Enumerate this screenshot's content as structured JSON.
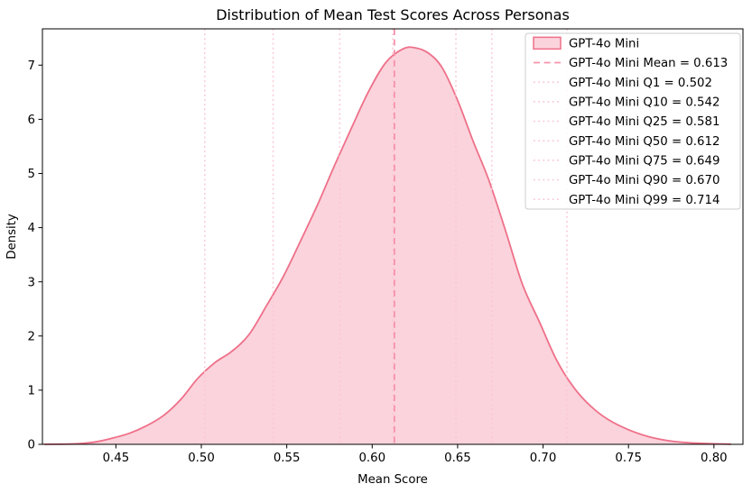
{
  "figure": {
    "title": "Distribution of Mean Test Scores Across Personas",
    "xlabel": "Mean Score",
    "ylabel": "Density"
  },
  "colors": {
    "kde_fill": "#fbd3dc",
    "kde_line": "#ee7089",
    "mean_line": "#f593aa",
    "quantile_line": "#fac8d3",
    "axis": "#000000",
    "legend_border": "#cccccc",
    "legend_bg": "rgba(255,255,255,0.85)"
  },
  "chart_data": {
    "type": "area",
    "subtype": "kde-density",
    "title": "Distribution of Mean Test Scores Across Personas",
    "xlabel": "Mean Score",
    "ylabel": "Density",
    "xlim": [
      0.407,
      0.817
    ],
    "ylim": [
      0,
      7.67
    ],
    "grid": false,
    "legend_position": "upper right",
    "x_ticks": {
      "values": [
        0.45,
        0.5,
        0.55,
        0.6,
        0.65,
        0.7,
        0.75,
        0.8
      ],
      "labels": [
        "0.45",
        "0.50",
        "0.55",
        "0.60",
        "0.65",
        "0.70",
        "0.75",
        "0.80"
      ]
    },
    "y_ticks": {
      "values": [
        0,
        1,
        2,
        3,
        4,
        5,
        6,
        7
      ],
      "labels": [
        "0",
        "1",
        "2",
        "3",
        "4",
        "5",
        "6",
        "7"
      ]
    },
    "series": [
      {
        "name": "GPT-4o Mini",
        "legend_label": "GPT-4o Mini",
        "points": [
          [
            0.408,
            0.0
          ],
          [
            0.418,
            0.003
          ],
          [
            0.428,
            0.012
          ],
          [
            0.438,
            0.045
          ],
          [
            0.448,
            0.115
          ],
          [
            0.458,
            0.205
          ],
          [
            0.468,
            0.345
          ],
          [
            0.478,
            0.535
          ],
          [
            0.488,
            0.83
          ],
          [
            0.498,
            1.22
          ],
          [
            0.508,
            1.51
          ],
          [
            0.518,
            1.72
          ],
          [
            0.528,
            2.03
          ],
          [
            0.538,
            2.55
          ],
          [
            0.548,
            3.1
          ],
          [
            0.558,
            3.75
          ],
          [
            0.568,
            4.42
          ],
          [
            0.578,
            5.15
          ],
          [
            0.588,
            5.85
          ],
          [
            0.598,
            6.52
          ],
          [
            0.608,
            7.05
          ],
          [
            0.618,
            7.3
          ],
          [
            0.625,
            7.32
          ],
          [
            0.633,
            7.22
          ],
          [
            0.641,
            6.95
          ],
          [
            0.65,
            6.35
          ],
          [
            0.659,
            5.6
          ],
          [
            0.668,
            4.9
          ],
          [
            0.678,
            3.95
          ],
          [
            0.688,
            2.95
          ],
          [
            0.698,
            2.25
          ],
          [
            0.708,
            1.55
          ],
          [
            0.718,
            1.05
          ],
          [
            0.728,
            0.7
          ],
          [
            0.738,
            0.46
          ],
          [
            0.75,
            0.27
          ],
          [
            0.762,
            0.14
          ],
          [
            0.774,
            0.065
          ],
          [
            0.786,
            0.028
          ],
          [
            0.798,
            0.012
          ],
          [
            0.81,
            0.003
          ]
        ]
      }
    ],
    "stat_lines": [
      {
        "label": "GPT-4o Mini Mean = 0.613",
        "x": 0.613,
        "style": "dashed"
      },
      {
        "label": "GPT-4o Mini Q1 = 0.502",
        "x": 0.502,
        "style": "dotted"
      },
      {
        "label": "GPT-4o Mini Q10 = 0.542",
        "x": 0.542,
        "style": "dotted"
      },
      {
        "label": "GPT-4o Mini Q25 = 0.581",
        "x": 0.581,
        "style": "dotted"
      },
      {
        "label": "GPT-4o Mini Q50 = 0.612",
        "x": 0.612,
        "style": "dotted"
      },
      {
        "label": "GPT-4o Mini Q75 = 0.649",
        "x": 0.649,
        "style": "dotted"
      },
      {
        "label": "GPT-4o Mini Q90 = 0.670",
        "x": 0.67,
        "style": "dotted"
      },
      {
        "label": "GPT-4o Mini Q99 = 0.714",
        "x": 0.714,
        "style": "dotted"
      }
    ]
  }
}
